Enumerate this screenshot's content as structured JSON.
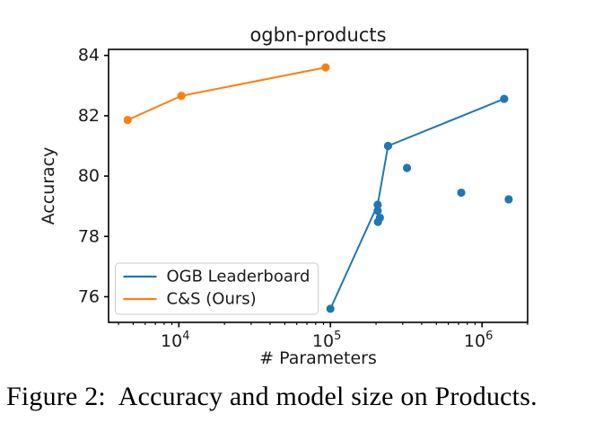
{
  "caption": {
    "text": "Figure 2:  Accuracy and model size on Products."
  },
  "chart_data": {
    "type": "line",
    "title": "ogbn-products",
    "xlabel": "# Parameters",
    "ylabel": "Accuracy",
    "x_scale": "log",
    "xlim": [
      3440,
      2000000
    ],
    "ylim": [
      75.15,
      84.2
    ],
    "grid": false,
    "x_ticks": [
      {
        "value": 10000,
        "base": "10",
        "exp": "4"
      },
      {
        "value": 100000,
        "base": "10",
        "exp": "5"
      },
      {
        "value": 1000000,
        "base": "10",
        "exp": "6"
      }
    ],
    "x_minor_ticks_decades": [
      3,
      4,
      5,
      6
    ],
    "y_ticks": [
      76,
      78,
      80,
      82,
      84
    ],
    "legend": {
      "position": "lower left",
      "entries": [
        {
          "label": "OGB Leaderboard",
          "color": "#1f77b4"
        },
        {
          "label": "C&S (Ours)",
          "color": "#ff7f0e"
        }
      ]
    },
    "series": [
      {
        "name": "OGB Leaderboard",
        "color": "#1f77b4",
        "marker": "circle",
        "line_points": [
          [
            100000,
            75.6
          ],
          [
            205000,
            79.05
          ],
          [
            240000,
            81.0
          ],
          [
            1400000,
            82.56
          ]
        ],
        "scatter_points": [
          [
            205000,
            78.85
          ],
          [
            212000,
            78.62
          ],
          [
            206000,
            78.48
          ],
          [
            320000,
            80.27
          ],
          [
            730000,
            79.45
          ],
          [
            1500000,
            79.23
          ]
        ]
      },
      {
        "name": "C&S (Ours)",
        "color": "#ff7f0e",
        "marker": "circle",
        "line_points": [
          [
            4600,
            81.86
          ],
          [
            10400,
            82.66
          ],
          [
            93000,
            83.6
          ]
        ],
        "scatter_points": []
      }
    ],
    "colors": {
      "axis": "#000000",
      "text": "#1a1a1a",
      "legend_border": "#cccccc"
    }
  }
}
